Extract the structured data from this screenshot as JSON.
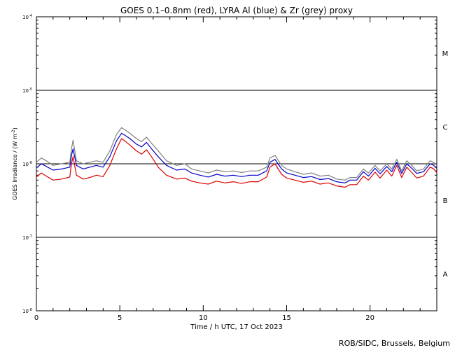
{
  "chart_data": {
    "type": "line",
    "title": "GOES 0.1–0.8nm (red), LYRA Al (blue) & Zr (grey) proxy",
    "xlabel": "Time / h UTC, 17 Oct 2023",
    "ylabel_main": "GOES Irradiance / (W m",
    "ylabel_sup": "-2",
    "ylabel_close": ")",
    "credit": "ROB/SIDC, Brussels, Belgium",
    "xlim": [
      0,
      24
    ],
    "ylim": [
      1e-08,
      0.0001
    ],
    "yscale": "log",
    "x_ticks": [
      "0",
      "5",
      "10",
      "15",
      "20"
    ],
    "x_tick_values": [
      0,
      5,
      10,
      15,
      20
    ],
    "y_ticks": [
      {
        "base": "10",
        "exp": "-4",
        "value": 0.0001
      },
      {
        "base": "10",
        "exp": "-5",
        "value": 1e-05
      },
      {
        "base": "10",
        "exp": "-6",
        "value": 1e-06
      },
      {
        "base": "10",
        "exp": "-7",
        "value": 1e-07
      },
      {
        "base": "10",
        "exp": "-8",
        "value": 1e-08
      }
    ],
    "reference_lines": [
      1e-05,
      1e-06,
      1e-07
    ],
    "class_labels": [
      {
        "label": "M",
        "value": 3.2e-05
      },
      {
        "label": "C",
        "value": 3.2e-06
      },
      {
        "label": "B",
        "value": 3.2e-07
      },
      {
        "label": "A",
        "value": 3.2e-08
      }
    ],
    "series": [
      {
        "color": "#808080",
        "x": [
          0,
          0.3,
          0.6,
          1.0,
          1.5,
          2.0,
          2.1,
          2.2,
          2.4,
          2.8,
          3.2,
          3.6,
          4.0,
          4.4,
          4.8,
          5.1,
          5.3,
          5.6,
          6.0,
          6.3,
          6.6,
          6.9,
          7.3,
          7.8,
          8.4,
          8.9,
          9.3,
          9.8,
          10.3,
          10.8,
          11.3,
          11.8,
          12.3,
          12.8,
          13.3,
          13.8,
          14.0,
          14.3,
          14.7,
          15.0,
          15.5,
          16.0,
          16.5,
          17.0,
          17.5,
          18.0,
          18.5,
          18.8,
          19.2,
          19.6,
          19.9,
          20.3,
          20.6,
          21.0,
          21.3,
          21.6,
          21.9,
          22.2,
          22.5,
          22.8,
          23.2,
          23.6,
          23.8,
          24.0
        ],
        "y": [
          1.05e-06,
          1.2e-06,
          1.1e-06,
          9.5e-07,
          1e-06,
          1.05e-06,
          1.6e-06,
          2.1e-06,
          1.1e-06,
          1e-06,
          1.05e-06,
          1.1e-06,
          1.05e-06,
          1.5e-06,
          2.5e-06,
          3.1e-06,
          2.9e-06,
          2.6e-06,
          2.2e-06,
          2e-06,
          2.3e-06,
          1.9e-06,
          1.5e-06,
          1.1e-06,
          9.5e-07,
          1e-06,
          8.5e-07,
          8e-07,
          7.5e-07,
          8.2e-07,
          7.8e-07,
          8e-07,
          7.6e-07,
          8e-07,
          8e-07,
          9e-07,
          1.2e-06,
          1.3e-06,
          9.5e-07,
          8.5e-07,
          7.8e-07,
          7.2e-07,
          7.5e-07,
          6.8e-07,
          7e-07,
          6.2e-07,
          6e-07,
          6.5e-07,
          6.5e-07,
          8.5e-07,
          7.5e-07,
          9.5e-07,
          8e-07,
          1e-06,
          8.5e-07,
          1.15e-06,
          8e-07,
          1.1e-06,
          9.5e-07,
          8e-07,
          8.5e-07,
          1.1e-06,
          1.05e-06,
          9.5e-07
        ]
      },
      {
        "color": "#0000cc",
        "x": [
          0,
          0.3,
          0.6,
          1.0,
          1.5,
          2.0,
          2.1,
          2.2,
          2.4,
          2.8,
          3.2,
          3.6,
          4.0,
          4.4,
          4.8,
          5.1,
          5.3,
          5.6,
          6.0,
          6.3,
          6.6,
          6.9,
          7.3,
          7.8,
          8.4,
          8.9,
          9.3,
          9.8,
          10.3,
          10.8,
          11.3,
          11.8,
          12.3,
          12.8,
          13.3,
          13.8,
          14.0,
          14.3,
          14.7,
          15.0,
          15.5,
          16.0,
          16.5,
          17.0,
          17.5,
          18.0,
          18.5,
          18.8,
          19.2,
          19.6,
          19.9,
          20.3,
          20.6,
          21.0,
          21.3,
          21.6,
          21.9,
          22.2,
          22.5,
          22.8,
          23.2,
          23.6,
          23.8,
          24.0
        ],
        "y": [
          8.8e-07,
          1e-06,
          9.2e-07,
          8.2e-07,
          8.5e-07,
          9e-07,
          1.3e-06,
          1.6e-06,
          9.5e-07,
          8.5e-07,
          9e-07,
          9.5e-07,
          9e-07,
          1.25e-06,
          2.05e-06,
          2.6e-06,
          2.45e-06,
          2.2e-06,
          1.85e-06,
          1.7e-06,
          1.95e-06,
          1.6e-06,
          1.25e-06,
          9.5e-07,
          8.2e-07,
          8.5e-07,
          7.5e-07,
          7e-07,
          6.6e-07,
          7.2e-07,
          6.8e-07,
          7e-07,
          6.7e-07,
          7e-07,
          7e-07,
          8e-07,
          1.05e-06,
          1.15e-06,
          8.5e-07,
          7.5e-07,
          7e-07,
          6.5e-07,
          6.7e-07,
          6.1e-07,
          6.3e-07,
          5.7e-07,
          5.5e-07,
          6e-07,
          6e-07,
          7.8e-07,
          6.8e-07,
          8.7e-07,
          7.3e-07,
          9.2e-07,
          7.8e-07,
          1.05e-06,
          7.4e-07,
          1e-06,
          8.7e-07,
          7.4e-07,
          7.8e-07,
          1e-06,
          9.6e-07,
          8.7e-07
        ]
      },
      {
        "color": "#dd0000",
        "x": [
          0,
          0.3,
          0.6,
          1.0,
          1.5,
          2.0,
          2.1,
          2.2,
          2.4,
          2.8,
          3.2,
          3.6,
          4.0,
          4.4,
          4.8,
          5.1,
          5.3,
          5.6,
          6.0,
          6.3,
          6.6,
          6.9,
          7.3,
          7.8,
          8.4,
          8.9,
          9.3,
          9.8,
          10.3,
          10.8,
          11.3,
          11.8,
          12.3,
          12.8,
          13.3,
          13.8,
          14.0,
          14.3,
          14.7,
          15.0,
          15.5,
          16.0,
          16.5,
          17.0,
          17.5,
          18.0,
          18.5,
          18.8,
          19.2,
          19.6,
          19.9,
          20.3,
          20.6,
          21.0,
          21.3,
          21.6,
          21.9,
          22.2,
          22.5,
          22.8,
          23.2,
          23.6,
          23.8,
          24.0
        ],
        "y": [
          6.6e-07,
          7.5e-07,
          6.8e-07,
          6e-07,
          6.2e-07,
          6.6e-07,
          1e-06,
          1.25e-06,
          7e-07,
          6.2e-07,
          6.5e-07,
          7e-07,
          6.7e-07,
          9.5e-07,
          1.6e-06,
          2.2e-06,
          2.05e-06,
          1.8e-06,
          1.5e-06,
          1.35e-06,
          1.55e-06,
          1.25e-06,
          9e-07,
          7e-07,
          6.2e-07,
          6.4e-07,
          5.8e-07,
          5.5e-07,
          5.3e-07,
          5.8e-07,
          5.5e-07,
          5.7e-07,
          5.4e-07,
          5.7e-07,
          5.7e-07,
          6.6e-07,
          9e-07,
          1e-06,
          7.2e-07,
          6.4e-07,
          6e-07,
          5.6e-07,
          5.8e-07,
          5.3e-07,
          5.5e-07,
          5e-07,
          4.8e-07,
          5.2e-07,
          5.2e-07,
          6.8e-07,
          6e-07,
          7.7e-07,
          6.4e-07,
          8.2e-07,
          6.8e-07,
          9.5e-07,
          6.5e-07,
          9e-07,
          7.6e-07,
          6.4e-07,
          6.8e-07,
          9e-07,
          8.6e-07,
          7.6e-07
        ]
      }
    ]
  }
}
